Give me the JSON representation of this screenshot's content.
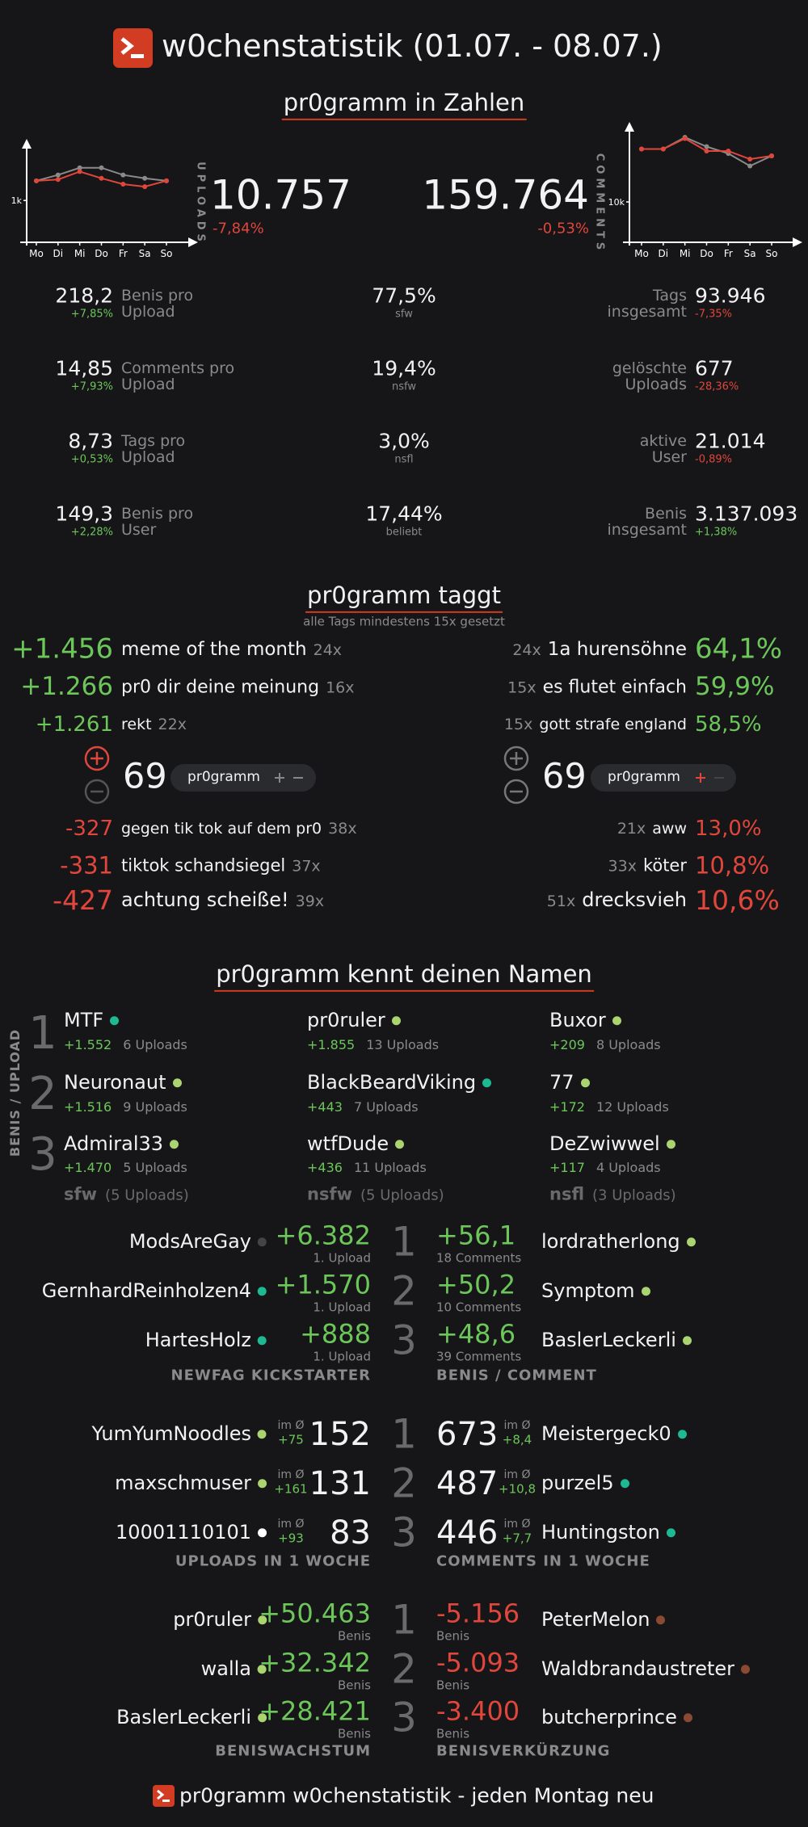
{
  "header": {
    "title": "w0chenstatistik (01.07. - 08.07.)"
  },
  "chart_data": [
    {
      "type": "line",
      "categories": [
        "Mo",
        "Di",
        "Mi",
        "Do",
        "Fr",
        "Sa",
        "So"
      ],
      "series": [
        {
          "color": "#8a8a8a",
          "values": [
            1470,
            1610,
            1780,
            1780,
            1610,
            1530,
            1470
          ]
        },
        {
          "color": "#e0463c",
          "values": [
            1470,
            1500,
            1690,
            1530,
            1390,
            1330,
            1470
          ]
        }
      ],
      "ylim": [
        0,
        2200
      ],
      "yticks": [
        {
          "value": 1000,
          "label": "1k"
        }
      ]
    },
    {
      "type": "line",
      "categories": [
        "Mo",
        "Di",
        "Mi",
        "Do",
        "Fr",
        "Sa",
        "So"
      ],
      "series": [
        {
          "color": "#8a8a8a",
          "values": [
            23100,
            23100,
            26000,
            23700,
            22000,
            18900,
            21400
          ]
        },
        {
          "color": "#e0463c",
          "values": [
            23100,
            23100,
            25700,
            22600,
            22600,
            20600,
            21400
          ]
        }
      ],
      "ylim": [
        0,
        27000
      ],
      "yticks": [
        {
          "value": 10000,
          "label": "10k"
        }
      ]
    }
  ],
  "stats": {
    "heading": "pr0gramm in Zahlen",
    "uploads": {
      "label": "UPLOADS",
      "value": "10.757",
      "change": "-7,84%"
    },
    "comments": {
      "label": "COMMENTS",
      "value": "159.764",
      "change": "-0,53%"
    },
    "left": [
      {
        "value": "218,2",
        "change": "+7,85%",
        "label": [
          "Benis pro",
          "Upload"
        ]
      },
      {
        "value": "14,85",
        "change": "+7,93%",
        "label": [
          "Comments pro",
          "Upload"
        ]
      },
      {
        "value": "8,73",
        "change": "+0,53%",
        "label": [
          "Tags pro",
          "Upload"
        ]
      },
      {
        "value": "149,3",
        "change": "+2,28%",
        "label": [
          "Benis pro",
          "User"
        ]
      }
    ],
    "middle": [
      {
        "value": "77,5%",
        "label": "sfw"
      },
      {
        "value": "19,4%",
        "label": "nsfw"
      },
      {
        "value": "3,0%",
        "label": "nsfl"
      },
      {
        "value": "17,44%",
        "label": "beliebt"
      }
    ],
    "right": [
      {
        "label": [
          "Tags",
          "insgesamt"
        ],
        "value": "93.946",
        "change": "-7,35%"
      },
      {
        "label": [
          "gelöschte",
          "Uploads"
        ],
        "value": "677",
        "change": "-28,36%"
      },
      {
        "label": [
          "aktive",
          "User"
        ],
        "value": "21.014",
        "change": "-0,89%"
      },
      {
        "label": [
          "Benis",
          "insgesamt"
        ],
        "value": "3.137.093",
        "change": "+1,38%"
      }
    ]
  },
  "tags": {
    "heading": "pr0gramm taggt",
    "subtitle": "alle Tags mindestens 15x gesetzt",
    "top_left": [
      {
        "score": "+1.456",
        "tag": "meme of the month",
        "count": "24x"
      },
      {
        "score": "+1.266",
        "tag": "pr0 dir deine meinung",
        "count": "16x"
      },
      {
        "score": "+1.261",
        "tag": "rekt",
        "count": "22x"
      }
    ],
    "top_right": [
      {
        "count": "24x",
        "tag": "1a hurensöhne",
        "percent": "64,1%"
      },
      {
        "count": "15x",
        "tag": "es flutet einfach",
        "percent": "59,9%"
      },
      {
        "count": "15x",
        "tag": "gott strafe england",
        "percent": "58,5%"
      }
    ],
    "vote_left": {
      "score": "69",
      "tag": "pr0gramm"
    },
    "vote_right": {
      "score": "69",
      "tag": "pr0gramm"
    },
    "bottom_left": [
      {
        "score": "-327",
        "tag": "gegen tik tok auf dem pr0",
        "count": "38x"
      },
      {
        "score": "-331",
        "tag": "tiktok schandsiegel",
        "count": "37x"
      },
      {
        "score": "-427",
        "tag": "achtung scheiße!",
        "count": "39x"
      }
    ],
    "bottom_right": [
      {
        "count": "21x",
        "tag": "aww",
        "percent": "13,0%"
      },
      {
        "count": "33x",
        "tag": "köter",
        "percent": "10,8%"
      },
      {
        "count": "51x",
        "tag": "drecksvieh",
        "percent": "10,6%"
      }
    ]
  },
  "names": {
    "heading": "pr0gramm kennt deinen Namen",
    "side_label": "BENIS / UPLOAD",
    "ranks": [
      "1",
      "2",
      "3"
    ],
    "columns": [
      {
        "users": [
          {
            "name": "MTF",
            "dot": "#1cb992",
            "benis": "+1.552",
            "uploads": "6 Uploads"
          },
          {
            "name": "Neuronaut",
            "dot": "#a9d46f",
            "benis": "+1.516",
            "uploads": "9 Uploads"
          },
          {
            "name": "Admiral33",
            "dot": "#a9d46f",
            "benis": "+1.470",
            "uploads": "5 Uploads"
          }
        ],
        "label": "sfw",
        "count": "(5 Uploads)"
      },
      {
        "users": [
          {
            "name": "pr0ruler",
            "dot": "#a9d46f",
            "benis": "+1.855",
            "uploads": "13 Uploads"
          },
          {
            "name": "BlackBeardViking",
            "dot": "#1cb992",
            "benis": "+443",
            "uploads": "7 Uploads"
          },
          {
            "name": "wtfDude",
            "dot": "#a9d46f",
            "benis": "+436",
            "uploads": "11 Uploads"
          }
        ],
        "label": "nsfw",
        "count": "(5 Uploads)"
      },
      {
        "users": [
          {
            "name": "Buxor",
            "dot": "#a9d46f",
            "benis": "+209",
            "uploads": "8 Uploads"
          },
          {
            "name": "77",
            "dot": "#a9d46f",
            "benis": "+172",
            "uploads": "12 Uploads"
          },
          {
            "name": "DeZwiwwel",
            "dot": "#a9d46f",
            "benis": "+117",
            "uploads": "4 Uploads"
          }
        ],
        "label": "nsfl",
        "count": "(3 Uploads)"
      }
    ]
  },
  "newfag": {
    "label": "NEWFAG KICKSTARTER",
    "rows": [
      {
        "name": "ModsAreGay",
        "dot": "#444444",
        "value": "+6.382",
        "sub": "1. Upload"
      },
      {
        "name": "GernhardReinholzen4",
        "dot": "#1cb992",
        "value": "+1.570",
        "sub": "1. Upload"
      },
      {
        "name": "HartesHolz",
        "dot": "#1cb992",
        "value": "+888",
        "sub": "1. Upload"
      }
    ]
  },
  "benis_comment": {
    "label": "BENIS / COMMENT",
    "rows": [
      {
        "value": "+56,1",
        "sub": "18 Comments",
        "name": "lordratherlong",
        "dot": "#a9d46f"
      },
      {
        "value": "+50,2",
        "sub": "10 Comments",
        "name": "Symptom",
        "dot": "#a9d46f"
      },
      {
        "value": "+48,6",
        "sub": "39 Comments",
        "name": "BaslerLeckerli",
        "dot": "#a9d46f"
      }
    ]
  },
  "uploads_week": {
    "label": "UPLOADS IN 1 WOCHE",
    "avg_label": "im Ø",
    "rows": [
      {
        "name": "YumYumNoodles",
        "dot": "#a9d46f",
        "avg": "+75",
        "value": "152"
      },
      {
        "name": "maxschmuser",
        "dot": "#a9d46f",
        "avg": "+161",
        "value": "131"
      },
      {
        "name": "10001110101",
        "dot": "#ffffff",
        "avg": "+93",
        "value": "83"
      }
    ]
  },
  "comments_week": {
    "label": "COMMENTS IN 1 WOCHE",
    "avg_label": "im Ø",
    "rows": [
      {
        "value": "673",
        "avg": "+8,4",
        "name": "Meistergeck0",
        "dot": "#1cb992"
      },
      {
        "value": "487",
        "avg": "+10,8",
        "name": "purzel5",
        "dot": "#1cb992"
      },
      {
        "value": "446",
        "avg": "+7,7",
        "name": "Huntingston",
        "dot": "#1cb992"
      }
    ]
  },
  "benis_growth": {
    "label": "BENISWACHSTUM",
    "unit": "Benis",
    "rows": [
      {
        "name": "pr0ruler",
        "dot": "#a9d46f",
        "value": "+50.463"
      },
      {
        "name": "walla",
        "dot": "#a9d46f",
        "value": "+32.342"
      },
      {
        "name": "BaslerLeckerli",
        "dot": "#a9d46f",
        "value": "+28.421"
      }
    ]
  },
  "benis_loss": {
    "label": "BENISVERKÜRZUNG",
    "unit": "Benis",
    "rows": [
      {
        "value": "-5.156",
        "name": "PeterMelon",
        "dot": "#8a4a32"
      },
      {
        "value": "-5.093",
        "name": "Waldbrandaustreter",
        "dot": "#8a4a32"
      },
      {
        "value": "-3.400",
        "name": "butcherprince",
        "dot": "#8a4a32"
      }
    ]
  },
  "footer": {
    "text": "pr0gramm w0chenstatistik - jeden Montag neu"
  }
}
